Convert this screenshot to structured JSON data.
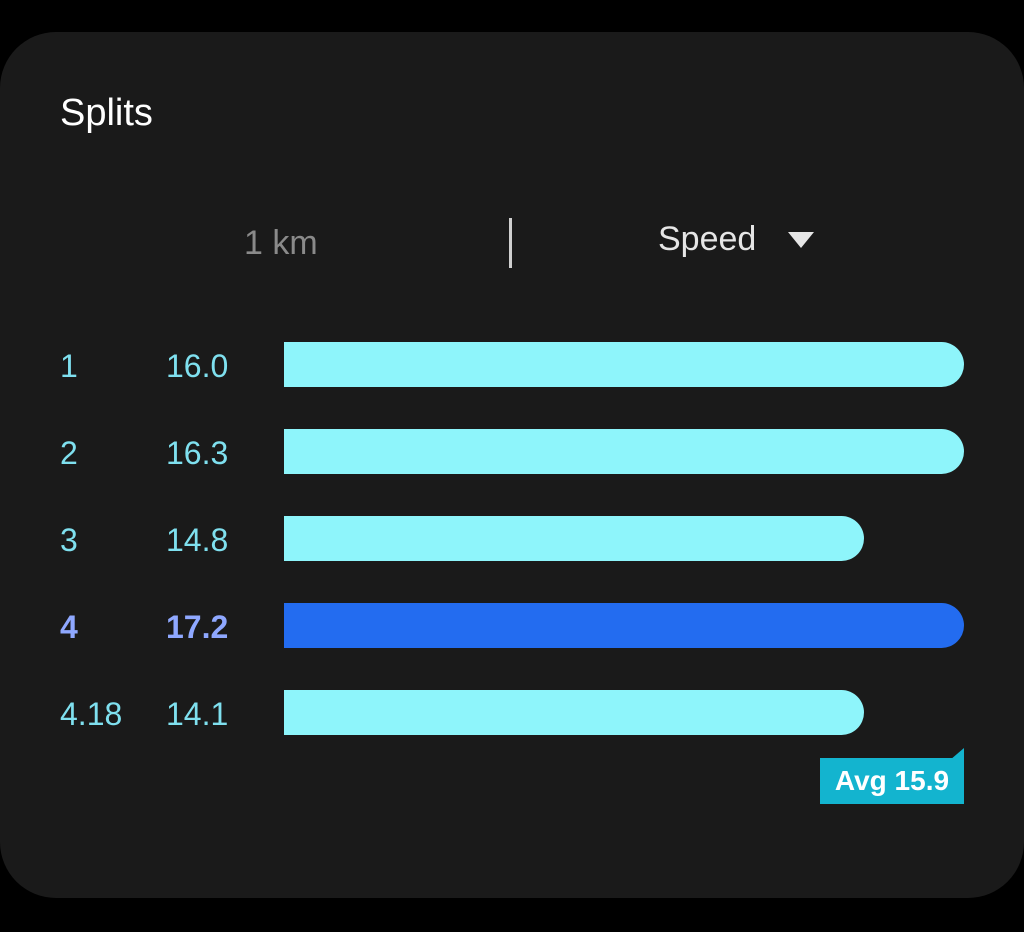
{
  "card": {
    "title": "Splits"
  },
  "controls": {
    "unit_label": "1 km",
    "metric_label": "Speed",
    "metric_icon": "caret-down-icon"
  },
  "splits": [
    {
      "index": "1",
      "value": "16.0",
      "speed": 16.0,
      "active": false
    },
    {
      "index": "2",
      "value": "16.3",
      "speed": 16.3,
      "active": false
    },
    {
      "index": "3",
      "value": "14.8",
      "speed": 14.8,
      "active": false
    },
    {
      "index": "4",
      "value": "17.2",
      "speed": 17.2,
      "active": true
    },
    {
      "index": "4.18",
      "value": "14.1",
      "speed": 14.1,
      "active": false
    }
  ],
  "average": {
    "label": "Avg 15.9"
  },
  "colors": {
    "card_background": "#1a1a1a",
    "bar": "#8ef5fb",
    "bar_active": "#236cf0",
    "label": "#7fe0ef",
    "label_active": "#8fa8ff",
    "avg_badge": "#13b4cf"
  }
}
